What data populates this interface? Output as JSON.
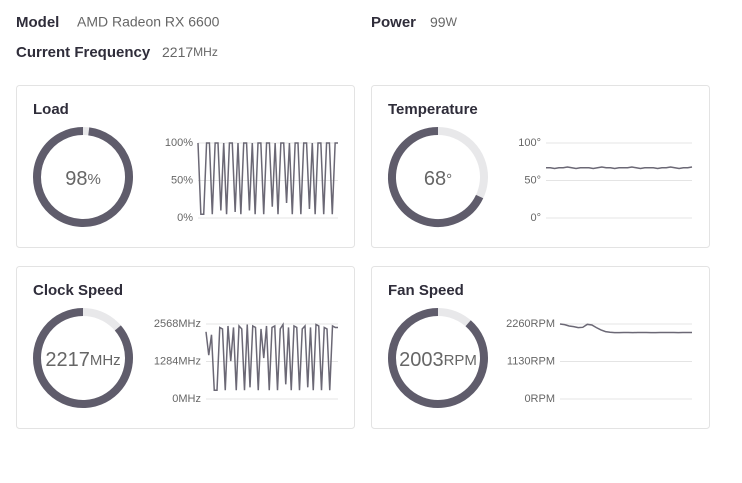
{
  "header": {
    "model_label": "Model",
    "model": "AMD Radeon RX 6600",
    "power_label": "Power",
    "power": 99,
    "power_unit": "W",
    "frequency_label": "Current Frequency",
    "frequency": 2217,
    "frequency_unit": "MHz"
  },
  "cards": [
    {
      "title": "Load",
      "gauge": {
        "value": 98,
        "unit": "%"
      },
      "chart": {
        "type": "line",
        "ylim": [
          0,
          100
        ],
        "yticks": [
          {
            "value": 100,
            "label": "100%"
          },
          {
            "value": 50,
            "label": "50%"
          },
          {
            "value": 0,
            "label": "0%"
          }
        ],
        "values": [
          100,
          5,
          5,
          100,
          100,
          5,
          100,
          100,
          10,
          100,
          5,
          100,
          100,
          8,
          100,
          5,
          100,
          100,
          10,
          100,
          5,
          100,
          100,
          5,
          100,
          100,
          15,
          100,
          5,
          100,
          100,
          20,
          100,
          5,
          100,
          100,
          5,
          100,
          100,
          12,
          100,
          5,
          100,
          100,
          5,
          100,
          100,
          5,
          100,
          100
        ]
      }
    },
    {
      "title": "Temperature",
      "gauge": {
        "value": 68,
        "unit": "°"
      },
      "chart": {
        "type": "line",
        "ylim": [
          0,
          100
        ],
        "yticks": [
          {
            "value": 100,
            "label": "100°"
          },
          {
            "value": 50,
            "label": "50°"
          },
          {
            "value": 0,
            "label": "0°"
          }
        ],
        "values": [
          67,
          67,
          66,
          67,
          67,
          68,
          67,
          66,
          67,
          67,
          67,
          66,
          67,
          68,
          67,
          67,
          66,
          67,
          67,
          67,
          68,
          67,
          66,
          67,
          67,
          67,
          66,
          67,
          67,
          68,
          67,
          66,
          67,
          67,
          68
        ]
      }
    },
    {
      "title": "Clock Speed",
      "gauge": {
        "value": 2217,
        "unit": "MHz"
      },
      "chart": {
        "type": "line",
        "ylim": [
          0,
          2568
        ],
        "yticks": [
          {
            "value": 2568,
            "label": "2568MHz"
          },
          {
            "value": 1284,
            "label": "1284MHz"
          },
          {
            "value": 0,
            "label": "0MHz"
          }
        ],
        "values": [
          2300,
          1500,
          2200,
          300,
          300,
          2450,
          2400,
          300,
          2500,
          1300,
          2450,
          300,
          2500,
          2400,
          300,
          2550,
          400,
          2500,
          2450,
          300,
          2400,
          1400,
          2500,
          300,
          2450,
          2500,
          300,
          2400,
          2550,
          500,
          2450,
          300,
          2500,
          2450,
          300,
          2400,
          2500,
          400,
          2450,
          300,
          2550,
          2500,
          300,
          2450,
          2400,
          300,
          2500,
          2450,
          2450
        ]
      }
    },
    {
      "title": "Fan Speed",
      "gauge": {
        "value": 2003,
        "unit": "RPM"
      },
      "chart": {
        "type": "line",
        "ylim": [
          0,
          2260
        ],
        "yticks": [
          {
            "value": 2260,
            "label": "2260RPM"
          },
          {
            "value": 1130,
            "label": "1130RPM"
          },
          {
            "value": 0,
            "label": "0RPM"
          }
        ],
        "values": [
          2260,
          2240,
          2200,
          2180,
          2150,
          2160,
          2250,
          2230,
          2150,
          2080,
          2030,
          2010,
          2000,
          2000,
          2005,
          2003,
          2000,
          2003,
          2005,
          2003,
          2000,
          2000,
          2003,
          2005,
          2003,
          2003,
          2000,
          2003,
          2005,
          2003
        ]
      }
    }
  ]
}
